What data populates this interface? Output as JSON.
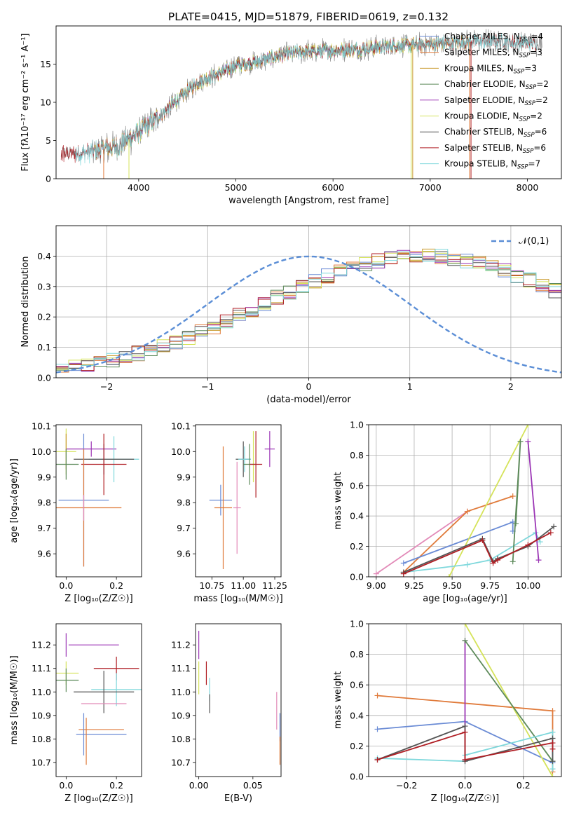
{
  "figure": {
    "title": "PLATE=0415, MJD=51879, FIBERID=0619, z=0.132",
    "colors": {
      "chabrier_miles": "#6a8bd5",
      "salpeter_miles": "#e07a3a",
      "kroupa_miles": "#c99a2c",
      "chabrier_elodie": "#5d8a5a",
      "salpeter_elodie": "#9b35b5",
      "kroupa_elodie": "#d5e35a",
      "chabrier_stelib": "#555555",
      "salpeter_stelib": "#b01e24",
      "kroupa_stelib": "#7fd8dc",
      "pink": "#e28ab8",
      "normal": "#5b8ed6",
      "grid": "#b0b0b0"
    }
  },
  "chart_data": [
    {
      "id": "spectrum",
      "type": "line",
      "xlabel": "wavelength [Angstrom, rest frame]",
      "ylabel": "Flux [fλ10⁻¹⁷ erg cm⁻² s⁻¹ A⁻¹]",
      "xlim": [
        3150,
        8350
      ],
      "ylim": [
        0,
        20
      ],
      "xticks": [
        4000,
        5000,
        6000,
        7000,
        8000
      ],
      "yticks": [
        0,
        5,
        10,
        15
      ],
      "grid": false,
      "legend_position": "right",
      "series": [
        {
          "name": "Chabrier MILES, NSSP=4",
          "color": "#6a8bd5",
          "xrange": [
            3540,
            7400
          ]
        },
        {
          "name": "Salpeter MILES, NSSP=3",
          "color": "#e07a3a",
          "xrange": [
            3540,
            7410
          ]
        },
        {
          "name": "Kroupa MILES, NSSP=3",
          "color": "#c99a2c",
          "xrange": [
            3540,
            7400
          ]
        },
        {
          "name": "Chabrier ELODIE, NSSP=2",
          "color": "#5d8a5a",
          "xrange": [
            3900,
            6800
          ]
        },
        {
          "name": "Salpeter ELODIE, NSSP=2",
          "color": "#9b35b5",
          "xrange": [
            3900,
            6800
          ]
        },
        {
          "name": "Kroupa ELODIE, NSSP=2",
          "color": "#d5e35a",
          "xrange": [
            3900,
            6800
          ]
        },
        {
          "name": "Chabrier STELIB, NSSP=6",
          "color": "#555555",
          "xrange": [
            3200,
            8100
          ]
        },
        {
          "name": "Salpeter STELIB, NSSP=6",
          "color": "#b01e24",
          "xrange": [
            3200,
            8100
          ]
        },
        {
          "name": "Kroupa STELIB, NSSP=7",
          "color": "#7fd8dc",
          "xrange": [
            3350,
            8100
          ]
        }
      ],
      "data_series": {
        "name": "data",
        "color": "#808080",
        "xrange": [
          3520,
          8150
        ]
      },
      "continuum": [
        [
          3400,
          3.3
        ],
        [
          3600,
          3.8
        ],
        [
          3800,
          4.3
        ],
        [
          3950,
          5.6
        ],
        [
          4200,
          8.0
        ],
        [
          4400,
          10.3
        ],
        [
          4600,
          12.6
        ],
        [
          4800,
          13.6
        ],
        [
          5000,
          14.8
        ],
        [
          5200,
          15.2
        ],
        [
          5500,
          16.3
        ],
        [
          5800,
          16.7
        ],
        [
          6000,
          16.8
        ],
        [
          6300,
          17.0
        ],
        [
          6600,
          17.4
        ],
        [
          7000,
          17.6
        ],
        [
          7400,
          17.9
        ],
        [
          7700,
          18.0
        ],
        [
          8100,
          17.6
        ]
      ]
    },
    {
      "id": "residuals",
      "type": "line",
      "xlabel": "(data-model)/error",
      "ylabel": "Normed distribution",
      "xlim": [
        -2.5,
        2.5
      ],
      "ylim": [
        0,
        0.5
      ],
      "xticks": [
        -2,
        -1,
        0,
        1,
        2
      ],
      "yticks": [
        0.0,
        0.1,
        0.2,
        0.3,
        0.4
      ],
      "grid": true,
      "legend_position": "top-right",
      "legend": "𝒩(0,1)",
      "hist_bins": 40,
      "hist_base": [
        0.033,
        0.039,
        0.045,
        0.052,
        0.06,
        0.069,
        0.08,
        0.092,
        0.105,
        0.119,
        0.134,
        0.151,
        0.168,
        0.186,
        0.205,
        0.225,
        0.245,
        0.264,
        0.283,
        0.301,
        0.319,
        0.335,
        0.35,
        0.363,
        0.375,
        0.385,
        0.392,
        0.397,
        0.4,
        0.4,
        0.398,
        0.393,
        0.386,
        0.377,
        0.366,
        0.353,
        0.338,
        0.322,
        0.305,
        0.287
      ]
    },
    {
      "id": "age_vs_Z",
      "type": "scatter",
      "xlabel": "Z [log₁₀(Z/Z☉)]",
      "ylabel": "age  [log₁₀(age/yr)]",
      "xlim": [
        -0.04,
        0.3
      ],
      "ylim": [
        9.51,
        10.105
      ],
      "xticks": [
        0.0,
        0.2
      ],
      "yticks": [
        9.6,
        9.7,
        9.8,
        9.9,
        10.0,
        10.1
      ],
      "grid": false,
      "points": [
        {
          "color": "#9b35b5",
          "x": 0.1,
          "xerr": 0.1,
          "y": 10.01,
          "yerr": 0.03
        },
        {
          "color": "#d5e35a",
          "x": 0.0,
          "xerr": 0.04,
          "y": 10.0,
          "yerr": 0.09
        },
        {
          "color": "#c99a2c",
          "x": 0.0,
          "xerr": 0.0,
          "y": 10.0,
          "yerr": 0.07
        },
        {
          "color": "#5d8a5a",
          "x": 0.0,
          "xerr": 0.05,
          "y": 9.95,
          "yerr": 0.06
        },
        {
          "color": "#7fd8dc",
          "x": 0.19,
          "xerr": 0.1,
          "y": 9.97,
          "yerr": 0.09
        },
        {
          "color": "#555555",
          "x": 0.15,
          "xerr": 0.12,
          "y": 9.97,
          "yerr": 0.06
        },
        {
          "color": "#b01e24",
          "x": 0.15,
          "xerr": 0.09,
          "y": 9.95,
          "yerr": 0.12
        },
        {
          "color": "#6a8bd5",
          "x": 0.07,
          "xerr": 0.1,
          "y": 9.81,
          "yerr": 0.26
        },
        {
          "color": "#e07a3a",
          "x": 0.07,
          "xerr": 0.15,
          "y": 9.78,
          "yerr": 0.23
        },
        {
          "color": "#e28ab8",
          "x": 0.07,
          "xerr": 0.0,
          "y": 9.78,
          "yerr": 0.05
        }
      ]
    },
    {
      "id": "age_vs_mass",
      "type": "scatter",
      "xlabel": "mass [log₁₀(M/M☉)]",
      "ylabel": "",
      "xlim": [
        10.62,
        11.3
      ],
      "ylim": [
        9.51,
        10.105
      ],
      "xticks": [
        10.75,
        11.0,
        11.25
      ],
      "yticks": [
        9.6,
        9.7,
        9.8,
        9.9,
        10.0,
        10.1
      ],
      "grid": false,
      "points": [
        {
          "color": "#6a8bd5",
          "x": 10.82,
          "xerr": 0.09,
          "y": 9.81,
          "yerr": 0.06
        },
        {
          "color": "#e07a3a",
          "x": 10.84,
          "xerr": 0.07,
          "y": 9.78,
          "yerr": 0.24
        },
        {
          "color": "#e28ab8",
          "x": 10.95,
          "xerr": 0.03,
          "y": 9.78,
          "yerr": 0.18
        },
        {
          "color": "#555555",
          "x": 11.0,
          "xerr": 0.06,
          "y": 9.97,
          "yerr": 0.07
        },
        {
          "color": "#d5e35a",
          "x": 11.08,
          "xerr": 0.0,
          "y": 9.98,
          "yerr": 0.1
        },
        {
          "color": "#7fd8dc",
          "x": 11.01,
          "xerr": 0.05,
          "y": 9.97,
          "yerr": 0.05
        },
        {
          "color": "#5d8a5a",
          "x": 11.05,
          "xerr": 0.05,
          "y": 9.95,
          "yerr": 0.08
        },
        {
          "color": "#b01e24",
          "x": 11.1,
          "xerr": 0.05,
          "y": 9.95,
          "yerr": 0.13
        },
        {
          "color": "#9b35b5",
          "x": 11.21,
          "xerr": 0.04,
          "y": 10.01,
          "yerr": 0.07
        }
      ]
    },
    {
      "id": "weight_vs_age",
      "type": "line",
      "xlabel": "age  [log₁₀(age/yr)]",
      "ylabel": "mass weight",
      "xlim": [
        8.95,
        10.22
      ],
      "ylim": [
        0.0,
        1.0
      ],
      "xticks": [
        9.0,
        9.25,
        9.5,
        9.75,
        10.0
      ],
      "yticks": [
        0.0,
        0.2,
        0.4,
        0.6,
        0.8,
        1.0
      ],
      "grid": true,
      "series": [
        {
          "color": "#e28ab8",
          "points": [
            [
              9.0,
              0.02
            ],
            [
              9.6,
              0.43
            ]
          ]
        },
        {
          "color": "#e07a3a",
          "points": [
            [
              9.18,
              0.03
            ],
            [
              9.6,
              0.43
            ],
            [
              9.9,
              0.53
            ]
          ]
        },
        {
          "color": "#6a8bd5",
          "points": [
            [
              9.18,
              0.09
            ],
            [
              9.9,
              0.36
            ],
            [
              9.9,
              0.3
            ]
          ]
        },
        {
          "color": "#d5e35a",
          "points": [
            [
              9.48,
              0.0
            ],
            [
              10.0,
              1.0
            ]
          ]
        },
        {
          "color": "#7fd8dc",
          "points": [
            [
              9.18,
              0.03
            ],
            [
              9.6,
              0.08
            ],
            [
              9.75,
              0.11
            ],
            [
              10.05,
              0.29
            ],
            [
              10.08,
              0.23
            ]
          ]
        },
        {
          "color": "#5d8a5a",
          "points": [
            [
              9.9,
              0.1
            ],
            [
              9.95,
              0.89
            ],
            [
              9.92,
              0.35
            ]
          ]
        },
        {
          "color": "#9b35b5",
          "points": [
            [
              10.0,
              0.89
            ],
            [
              10.07,
              0.11
            ]
          ]
        },
        {
          "color": "#555555",
          "points": [
            [
              9.18,
              0.03
            ],
            [
              9.7,
              0.25
            ],
            [
              9.77,
              0.1
            ],
            [
              9.8,
              0.12
            ],
            [
              10.0,
              0.2
            ],
            [
              10.17,
              0.33
            ]
          ]
        },
        {
          "color": "#b01e24",
          "points": [
            [
              9.18,
              0.02
            ],
            [
              9.7,
              0.24
            ],
            [
              9.77,
              0.09
            ],
            [
              9.8,
              0.11
            ],
            [
              10.0,
              0.21
            ],
            [
              10.15,
              0.29
            ]
          ]
        }
      ]
    },
    {
      "id": "mass_vs_Z",
      "type": "scatter",
      "xlabel": "Z [log₁₀(Z/Z☉)]",
      "ylabel": "mass [log₁₀(M/M☉)]",
      "xlim": [
        -0.04,
        0.3
      ],
      "ylim": [
        10.64,
        11.29
      ],
      "xticks": [
        0.0,
        0.2
      ],
      "yticks": [
        10.7,
        10.8,
        10.9,
        11.0,
        11.1,
        11.2
      ],
      "grid": false,
      "points": [
        {
          "color": "#9b35b5",
          "x": 0.0,
          "xerr": 0.0,
          "y": 11.2,
          "yerr": 0.05
        },
        {
          "color": "#9b35b5",
          "x": 0.11,
          "xerr": 0.1,
          "y": 11.2,
          "yerr": 0.0
        },
        {
          "color": "#d5e35a",
          "x": 0.0,
          "xerr": 0.05,
          "y": 11.08,
          "yerr": 0.05
        },
        {
          "color": "#5d8a5a",
          "x": 0.0,
          "xerr": 0.05,
          "y": 11.05,
          "yerr": 0.05
        },
        {
          "color": "#b01e24",
          "x": 0.2,
          "xerr": 0.09,
          "y": 11.1,
          "yerr": 0.05
        },
        {
          "color": "#7fd8dc",
          "x": 0.2,
          "xerr": 0.1,
          "y": 11.01,
          "yerr": 0.07
        },
        {
          "color": "#555555",
          "x": 0.15,
          "xerr": 0.12,
          "y": 11.0,
          "yerr": 0.09
        },
        {
          "color": "#e28ab8",
          "x": 0.15,
          "xerr": 0.09,
          "y": 10.95,
          "yerr": 0.0
        },
        {
          "color": "#e07a3a",
          "x": 0.14,
          "xerr": 0.09,
          "y": 10.84,
          "yerr": 0.0
        },
        {
          "color": "#6a8bd5",
          "x": 0.14,
          "xerr": 0.1,
          "y": 10.82,
          "yerr": 0.0
        },
        {
          "color": "#6a8bd5",
          "x": 0.07,
          "xerr": 0.0,
          "y": 10.82,
          "yerr": 0.09
        },
        {
          "color": "#e07a3a",
          "x": 0.08,
          "xerr": 0.0,
          "y": 10.79,
          "yerr": 0.1
        }
      ]
    },
    {
      "id": "mass_vs_ebv",
      "type": "scatter",
      "xlabel": "E(B-V)",
      "ylabel": "",
      "xlim": [
        -0.003,
        0.076
      ],
      "ylim": [
        10.64,
        11.29
      ],
      "xticks": [
        0.0,
        0.05
      ],
      "yticks": [
        10.7,
        10.8,
        10.9,
        11.0,
        11.1,
        11.2
      ],
      "grid": false,
      "points": [
        {
          "color": "#9b35b5",
          "x": 0.0,
          "xerr": 0.0,
          "y": 11.2,
          "yerr": 0.06
        },
        {
          "color": "#d5e35a",
          "x": 0.0,
          "xerr": 0.0,
          "y": 11.06,
          "yerr": 0.07
        },
        {
          "color": "#b01e24",
          "x": 0.007,
          "xerr": 0.0,
          "y": 11.08,
          "yerr": 0.05
        },
        {
          "color": "#7fd8dc",
          "x": 0.01,
          "xerr": 0.0,
          "y": 11.01,
          "yerr": 0.05
        },
        {
          "color": "#555555",
          "x": 0.01,
          "xerr": 0.0,
          "y": 10.95,
          "yerr": 0.04
        },
        {
          "color": "#e28ab8",
          "x": 0.072,
          "xerr": 0.0,
          "y": 10.92,
          "yerr": 0.08
        },
        {
          "color": "#6a8bd5",
          "x": 0.075,
          "xerr": 0.0,
          "y": 10.85,
          "yerr": 0.06
        },
        {
          "color": "#e07a3a",
          "x": 0.075,
          "xerr": 0.0,
          "y": 10.75,
          "yerr": 0.06
        }
      ]
    },
    {
      "id": "weight_vs_Z",
      "type": "line",
      "xlabel": "Z [log₁₀(Z/Z☉)]",
      "ylabel": "mass weight",
      "xlim": [
        -0.33,
        0.33
      ],
      "ylim": [
        0.0,
        1.0
      ],
      "xticks": [
        -0.2,
        0.0,
        0.2
      ],
      "yticks": [
        0.0,
        0.2,
        0.4,
        0.6,
        0.8,
        1.0
      ],
      "grid": true,
      "series": [
        {
          "color": "#e07a3a",
          "points": [
            [
              -0.3,
              0.53
            ],
            [
              0.3,
              0.43
            ],
            [
              0.3,
              0.03
            ]
          ]
        },
        {
          "color": "#6a8bd5",
          "points": [
            [
              -0.3,
              0.31
            ],
            [
              0.0,
              0.36
            ],
            [
              0.3,
              0.09
            ]
          ]
        },
        {
          "color": "#9b35b5",
          "points": [
            [
              0.0,
              0.89
            ],
            [
              0.0,
              0.11
            ]
          ]
        },
        {
          "color": "#d5e35a",
          "points": [
            [
              0.0,
              1.0
            ],
            [
              0.3,
              0.0
            ]
          ]
        },
        {
          "color": "#5d8a5a",
          "points": [
            [
              0.0,
              0.89
            ],
            [
              0.3,
              0.1
            ]
          ]
        },
        {
          "color": "#7fd8dc",
          "points": [
            [
              -0.3,
              0.12
            ],
            [
              0.0,
              0.1
            ],
            [
              0.0,
              0.14
            ],
            [
              0.3,
              0.29
            ],
            [
              0.3,
              0.05
            ]
          ]
        },
        {
          "color": "#555555",
          "points": [
            [
              -0.3,
              0.11
            ],
            [
              0.0,
              0.33
            ],
            [
              0.0,
              0.1
            ],
            [
              0.3,
              0.25
            ],
            [
              0.3,
              0.1
            ]
          ]
        },
        {
          "color": "#b01e24",
          "points": [
            [
              -0.3,
              0.11
            ],
            [
              0.0,
              0.29
            ],
            [
              0.0,
              0.11
            ],
            [
              0.3,
              0.22
            ],
            [
              0.3,
              0.18
            ]
          ]
        }
      ]
    }
  ]
}
